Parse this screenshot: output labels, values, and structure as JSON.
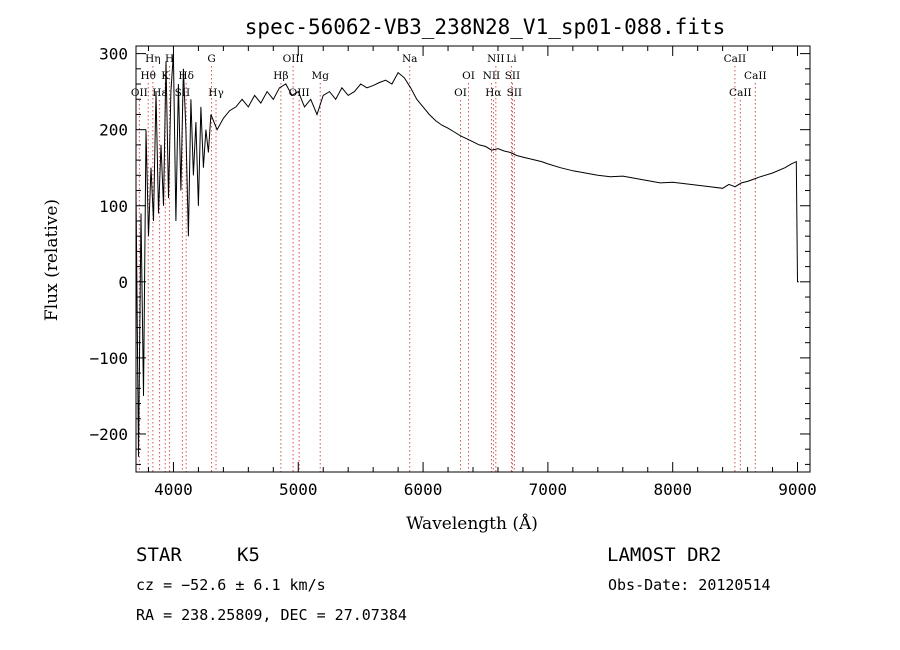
{
  "chart_data": {
    "type": "line",
    "title": "spec-56062-VB3_238N28_V1_sp01-088.fits",
    "xlabel": "Wavelength (Å)",
    "ylabel": "Flux (relative)",
    "xlim": [
      3700,
      9100
    ],
    "ylim": [
      -250,
      310
    ],
    "x_ticks": [
      4000,
      5000,
      6000,
      7000,
      8000,
      9000
    ],
    "y_ticks": [
      -200,
      -100,
      0,
      100,
      200,
      300
    ],
    "x_tick_labels": [
      "4000",
      "5000",
      "6000",
      "7000",
      "8000",
      "9000"
    ],
    "y_tick_labels": [
      "−200",
      "−100",
      "0",
      "100",
      "200",
      "300"
    ],
    "grid": false,
    "colors": {
      "spectrum": "#000000",
      "line_markers": "#d9534f",
      "axes": "#000000"
    },
    "series": [
      {
        "x": [
          3700,
          3720,
          3740,
          3760,
          3780,
          3800,
          3820,
          3840,
          3860,
          3880,
          3900,
          3920,
          3940,
          3960,
          3980,
          4000,
          4020,
          4040,
          4060,
          4080,
          4100,
          4120,
          4140,
          4160,
          4180,
          4200,
          4220,
          4240,
          4260,
          4280,
          4300,
          4350,
          4400,
          4450,
          4500,
          4550,
          4600,
          4650,
          4700,
          4750,
          4800,
          4850,
          4900,
          4950,
          5000,
          5050,
          5100,
          5150,
          5200,
          5250,
          5300,
          5350,
          5400,
          5450,
          5500,
          5550,
          5600,
          5650,
          5700,
          5750,
          5800,
          5850,
          5900,
          5950,
          6000,
          6050,
          6100,
          6150,
          6200,
          6250,
          6300,
          6350,
          6400,
          6450,
          6500,
          6550,
          6600,
          6650,
          6700,
          6750,
          6800,
          6850,
          6900,
          6950,
          7000,
          7100,
          7200,
          7300,
          7400,
          7500,
          7600,
          7700,
          7800,
          7900,
          8000,
          8100,
          8200,
          8300,
          8400,
          8450,
          8500,
          8550,
          8600,
          8650,
          8700,
          8800,
          8900,
          8950,
          8990,
          9000,
          9010
        ],
        "y": [
          120,
          -230,
          90,
          -150,
          200,
          60,
          150,
          80,
          250,
          90,
          180,
          100,
          290,
          110,
          250,
          300,
          80,
          260,
          120,
          280,
          200,
          60,
          240,
          140,
          210,
          100,
          230,
          150,
          200,
          170,
          220,
          200,
          215,
          225,
          230,
          240,
          230,
          245,
          235,
          250,
          240,
          255,
          260,
          245,
          250,
          230,
          240,
          220,
          245,
          250,
          240,
          255,
          245,
          250,
          260,
          255,
          258,
          262,
          265,
          260,
          275,
          268,
          255,
          240,
          230,
          220,
          212,
          206,
          202,
          197,
          192,
          188,
          184,
          180,
          178,
          173,
          175,
          172,
          170,
          166,
          164,
          162,
          160,
          158,
          155,
          150,
          146,
          143,
          140,
          138,
          139,
          136,
          133,
          130,
          131,
          129,
          127,
          125,
          123,
          128,
          125,
          130,
          132,
          135,
          138,
          143,
          150,
          155,
          158,
          0,
          0
        ]
      }
    ],
    "line_markers": [
      {
        "label": "OII",
        "x": 3727,
        "row": 3
      },
      {
        "label": "Hθ",
        "x": 3798,
        "row": 2
      },
      {
        "label": "Hη",
        "x": 3835,
        "row": 1
      },
      {
        "label": "K",
        "x": 3934,
        "row": 2
      },
      {
        "label": "Hε",
        "x": 3889,
        "row": 3
      },
      {
        "label": "H",
        "x": 3969,
        "row": 1
      },
      {
        "label": "SII",
        "x": 4072,
        "row": 3
      },
      {
        "label": "Hδ",
        "x": 4102,
        "row": 2
      },
      {
        "label": "G",
        "x": 4305,
        "row": 1
      },
      {
        "label": "Hγ",
        "x": 4341,
        "row": 3
      },
      {
        "label": "Hβ",
        "x": 4861,
        "row": 2
      },
      {
        "label": "OIII",
        "x": 4959,
        "row": 1
      },
      {
        "label": "OIII",
        "x": 5007,
        "row": 3
      },
      {
        "label": "Mg",
        "x": 5176,
        "row": 2
      },
      {
        "label": "Na",
        "x": 5893,
        "row": 1
      },
      {
        "label": "OI",
        "x": 6300,
        "row": 3
      },
      {
        "label": "OI",
        "x": 6364,
        "row": 2
      },
      {
        "label": "NII",
        "x": 6548,
        "row": 2
      },
      {
        "label": "Hα",
        "x": 6563,
        "row": 3
      },
      {
        "label": "NII",
        "x": 6583,
        "row": 1
      },
      {
        "label": "Li",
        "x": 6708,
        "row": 1
      },
      {
        "label": "SII",
        "x": 6716,
        "row": 2
      },
      {
        "label": "SII",
        "x": 6731,
        "row": 3
      },
      {
        "label": "CaII",
        "x": 8498,
        "row": 1
      },
      {
        "label": "CaII",
        "x": 8542,
        "row": 3
      },
      {
        "label": "CaII",
        "x": 8662,
        "row": 2
      }
    ]
  },
  "info": {
    "class_label": "STAR",
    "subclass": "K5",
    "survey": "LAMOST DR2",
    "redshift": "cz = −52.6 ± 6.1 km/s",
    "obs_date": "Obs-Date: 20120514",
    "coords": "RA = 238.25809, DEC =  27.07384"
  }
}
